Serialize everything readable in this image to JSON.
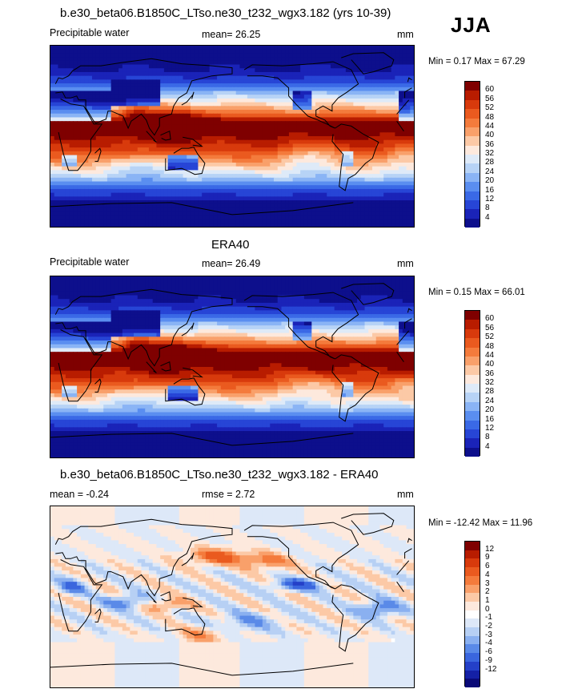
{
  "season": "JJA",
  "panels": [
    {
      "title": "b.e30_beta06.B1850C_LTso.ne30_t232_wgx3.182 (yrs 10-39)",
      "left_label": "Precipitable water",
      "center_label": "mean=  26.25",
      "units": "mm",
      "minmax": "Min =   0.17 Max =  67.29",
      "field": "model_precipitable_water",
      "colorbar": {
        "colors": [
          "#7f0000",
          "#b81c00",
          "#d83a0c",
          "#ea5a1f",
          "#f47b3c",
          "#f9a06a",
          "#fcc9a6",
          "#fde9dd",
          "#deeaf8",
          "#b7d3f6",
          "#8ab4f5",
          "#5a8ef0",
          "#3a69e6",
          "#2745d6",
          "#1a23b8",
          "#0d0f8c"
        ],
        "labels": [
          "60",
          "56",
          "52",
          "48",
          "44",
          "40",
          "36",
          "32",
          "28",
          "24",
          "20",
          "16",
          "12",
          "8",
          "4"
        ]
      }
    },
    {
      "title": "ERA40",
      "left_label": "Precipitable water",
      "center_label": "mean=  26.49",
      "units": "mm",
      "minmax": "Min =   0.15 Max =  66.01",
      "field": "era40_precipitable_water",
      "colorbar": {
        "colors": [
          "#7f0000",
          "#b81c00",
          "#d83a0c",
          "#ea5a1f",
          "#f47b3c",
          "#f9a06a",
          "#fcc9a6",
          "#fde9dd",
          "#deeaf8",
          "#b7d3f6",
          "#8ab4f5",
          "#5a8ef0",
          "#3a69e6",
          "#2745d6",
          "#1a23b8",
          "#0d0f8c"
        ],
        "labels": [
          "60",
          "56",
          "52",
          "48",
          "44",
          "40",
          "36",
          "32",
          "28",
          "24",
          "20",
          "16",
          "12",
          "8",
          "4"
        ]
      }
    },
    {
      "title": "b.e30_beta06.B1850C_LTso.ne30_t232_wgx3.182 - ERA40",
      "left_label": "mean =  -0.24",
      "center_label": "rmse =   2.72",
      "units": "mm",
      "minmax": "Min = -12.42 Max =  11.96",
      "field": "difference",
      "colorbar": {
        "colors": [
          "#7f0000",
          "#b81c00",
          "#d83a0c",
          "#ea5a1f",
          "#f47b3c",
          "#f9a06a",
          "#fcc9a6",
          "#fde9dd",
          "#ffffff",
          "#dde8f8",
          "#b7d0f4",
          "#8ab0f0",
          "#5a8ae8",
          "#3a66de",
          "#2440c8",
          "#1420a6",
          "#0a0a78"
        ],
        "labels": [
          "12",
          "9",
          "6",
          "4",
          "3",
          "2",
          "1",
          "0",
          "-1",
          "-2",
          "-3",
          "-4",
          "-6",
          "-9",
          "-12"
        ]
      }
    }
  ]
}
